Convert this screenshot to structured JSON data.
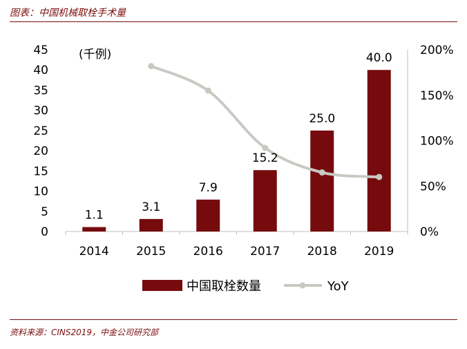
{
  "header": {
    "title": "图表：中国机械取栓手术量"
  },
  "footer": {
    "source": "资料来源：CINS2019，中金公司研究部"
  },
  "chart_data": {
    "type": "bar",
    "categories": [
      "2014",
      "2015",
      "2016",
      "2017",
      "2018",
      "2019"
    ],
    "series": [
      {
        "name": "中国取栓数量",
        "type": "bar",
        "axis": "left",
        "color": "#760b0e",
        "values": [
          1.1,
          3.1,
          7.9,
          15.2,
          25.0,
          40.0
        ],
        "labels": [
          "1.1",
          "3.1",
          "7.9",
          "15.2",
          "25.0",
          "40.0"
        ]
      },
      {
        "name": "YoY",
        "type": "line",
        "axis": "right",
        "color": "#c9c9c3",
        "values": [
          null,
          182,
          155,
          92,
          65,
          60
        ]
      }
    ],
    "unit_label": "(千例)",
    "y_left": {
      "min": 0,
      "max": 45,
      "ticks": [
        "0",
        "5",
        "10",
        "15",
        "20",
        "25",
        "30",
        "35",
        "40",
        "45"
      ]
    },
    "y_right": {
      "min": 0,
      "max": 200,
      "ticks": [
        "0%",
        "50%",
        "100%",
        "150%",
        "200%"
      ]
    },
    "grid": false,
    "legend": "bottom"
  }
}
